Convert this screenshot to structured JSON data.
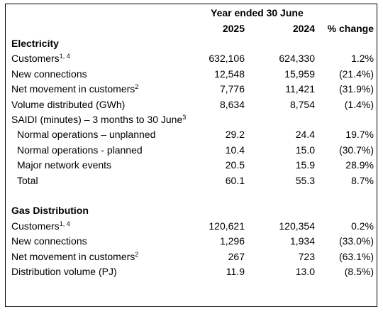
{
  "header": {
    "title": "Year ended 30 June",
    "columns": [
      "2025",
      "2024",
      "% change"
    ]
  },
  "sections": [
    {
      "title": "Electricity",
      "rows": [
        {
          "label": "Customers",
          "sup": "1, 4",
          "values": [
            "632,106",
            "624,330",
            "1.2%"
          ]
        },
        {
          "label": "New connections",
          "values": [
            "12,548",
            "15,959",
            "(21.4%)"
          ]
        },
        {
          "label": "Net movement in customers",
          "sup": "2",
          "values": [
            "7,776",
            "11,421",
            "(31.9%)"
          ]
        },
        {
          "label": "Volume distributed (GWh)",
          "values": [
            "8,634",
            "8,754",
            "(1.4%)"
          ]
        },
        {
          "label": "SAIDI (minutes) – 3 months to 30 June",
          "sup": "3",
          "rows": [
            {
              "label": "Normal operations – unplanned",
              "values": [
                "29.2",
                "24.4",
                "19.7%"
              ]
            },
            {
              "label": "Normal operations - planned",
              "values": [
                "10.4",
                "15.0",
                "(30.7%)"
              ]
            },
            {
              "label": "Major network events",
              "values": [
                "20.5",
                "15.9",
                "28.9%"
              ]
            },
            {
              "label": "Total",
              "values": [
                "60.1",
                "55.3",
                "8.7%"
              ]
            }
          ]
        }
      ]
    },
    {
      "title": "Gas Distribution",
      "rows": [
        {
          "label": "Customers",
          "sup": "1, 4",
          "values": [
            "120,621",
            "120,354",
            "0.2%"
          ]
        },
        {
          "label": "New connections",
          "values": [
            "1,296",
            "1,934",
            "(33.0%)"
          ]
        },
        {
          "label": "Net movement in customers",
          "sup": "2",
          "values": [
            "267",
            "723",
            "(63.1%)"
          ]
        },
        {
          "label": "Distribution volume (PJ)",
          "values": [
            "11.9",
            "13.0",
            "(8.5%)"
          ]
        }
      ]
    }
  ]
}
